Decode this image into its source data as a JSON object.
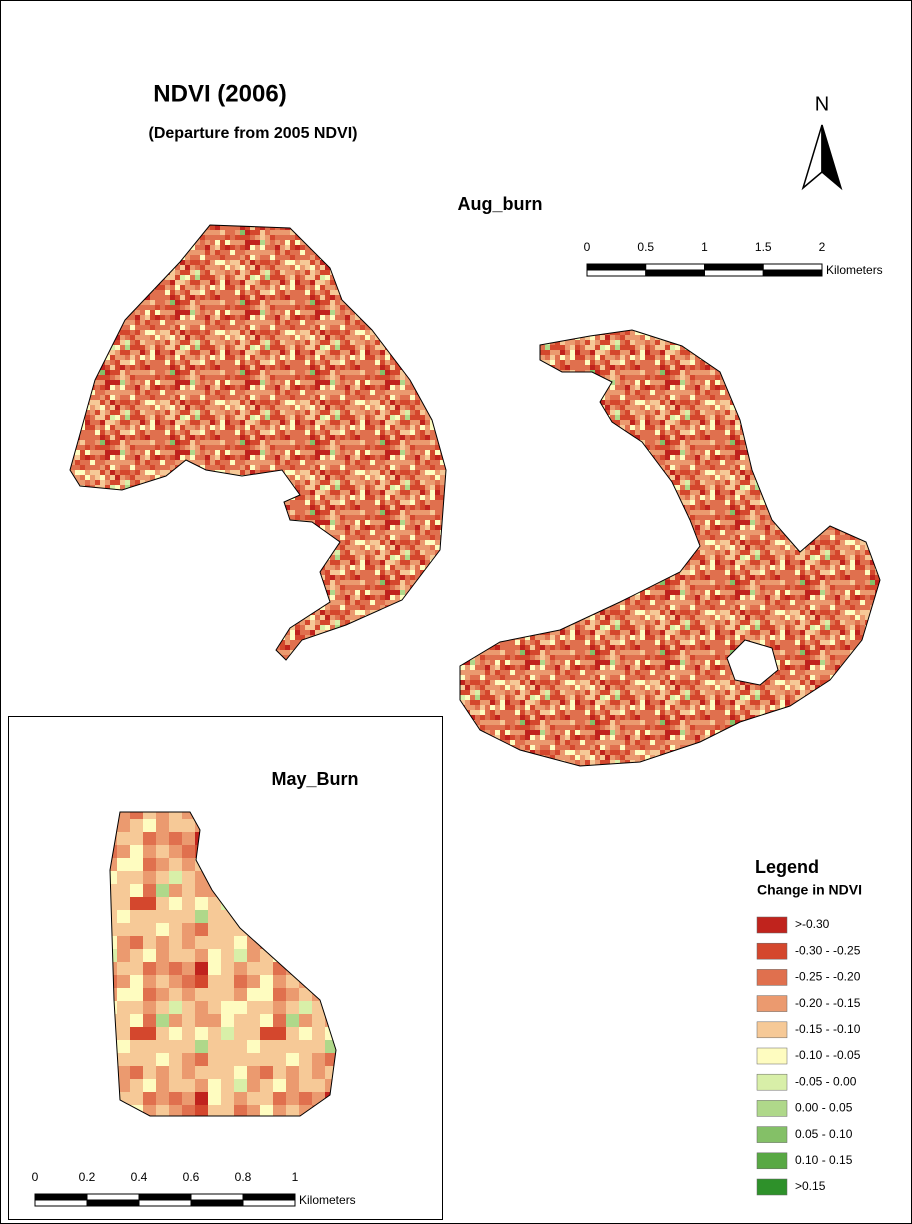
{
  "title": "NDVI (2006)",
  "subtitle": "(Departure from 2005 NDVI)",
  "north_arrow": "N",
  "areas": [
    "Aug_burn",
    "May_Burn"
  ],
  "legend": {
    "title": "Legend",
    "subtitle": "Change in NDVI",
    "items": [
      {
        "label": ">-0.30",
        "color": "#c0231d"
      },
      {
        "label": "-0.30 - -0.25",
        "color": "#d4472d"
      },
      {
        "label": "-0.25 - -0.20",
        "color": "#e0704e"
      },
      {
        "label": "-0.20 - -0.15",
        "color": "#eb9a6f"
      },
      {
        "label": "-0.15 - -0.10",
        "color": "#f6c997"
      },
      {
        "label": "-0.10 - -0.05",
        "color": "#fefcc0"
      },
      {
        "label": "-0.05 - 0.00",
        "color": "#d8efa8"
      },
      {
        "label": "0.00 - 0.05",
        "color": "#afd88a"
      },
      {
        "label": "0.05 - 0.10",
        "color": "#84c067"
      },
      {
        "label": "0.10 - 0.15",
        "color": "#58a844"
      },
      {
        "label": ">0.15",
        "color": "#2e912a"
      }
    ]
  },
  "scale_bars": [
    {
      "ticks": [
        0,
        0.5,
        1,
        1.5,
        2
      ],
      "unit": "Kilometers"
    },
    {
      "ticks": [
        0,
        0.2,
        0.4,
        0.6,
        0.8,
        1
      ],
      "unit": "Kilometers"
    }
  ]
}
